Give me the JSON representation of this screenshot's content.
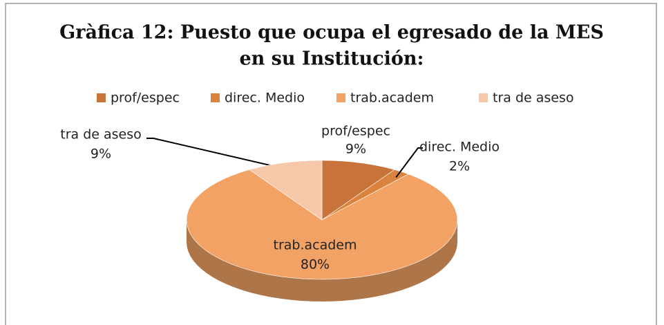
{
  "chart_data": {
    "type": "pie",
    "title": [
      "Gràfica 12: Puesto que ocupa el egresado de la MES",
      "en su Institución:"
    ],
    "categories": [
      "prof/espec",
      "direc. Medio",
      "trab.academ",
      "tra de aseso"
    ],
    "values": [
      9,
      2,
      80,
      9
    ],
    "value_labels": [
      "9%",
      "2%",
      "80%",
      "9%"
    ],
    "colors": [
      "#c8733a",
      "#d9833f",
      "#f2a264",
      "#f7c7a9"
    ],
    "legend": "top"
  }
}
